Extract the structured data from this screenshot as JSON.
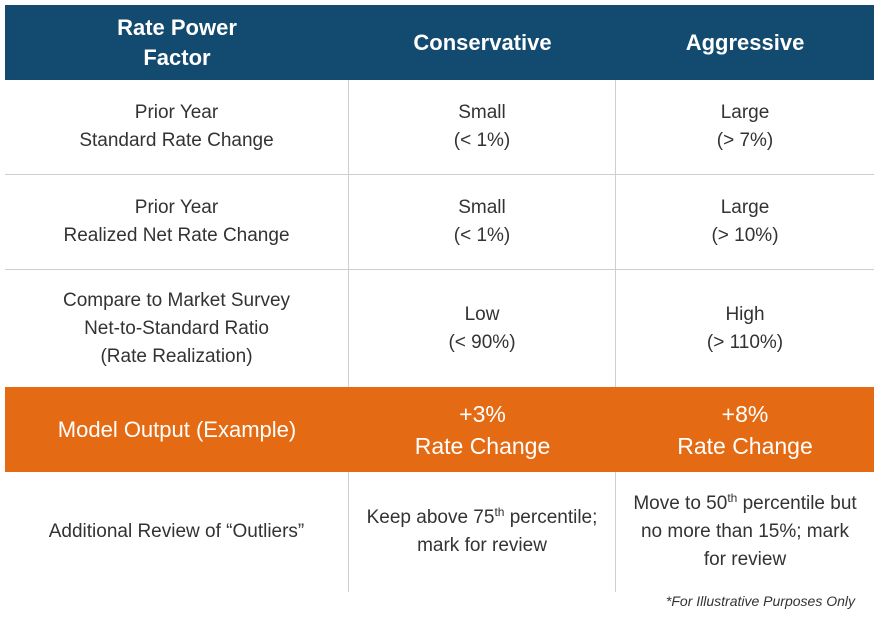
{
  "header": {
    "col1": [
      "Rate Power",
      "Factor"
    ],
    "col2": "Conservative",
    "col3": "Aggressive"
  },
  "rows": [
    {
      "factor": [
        "Prior Year",
        "Standard Rate Change"
      ],
      "conservative": [
        "Small",
        "(< 1%)"
      ],
      "aggressive": [
        "Large",
        "(> 7%)"
      ]
    },
    {
      "factor": [
        "Prior Year",
        "Realized Net Rate Change"
      ],
      "conservative": [
        "Small",
        "(< 1%)"
      ],
      "aggressive": [
        "Large",
        "(> 10%)"
      ]
    },
    {
      "factor": [
        "Compare to Market Survey",
        "Net-to-Standard Ratio",
        "(Rate Realization)"
      ],
      "conservative": [
        "Low",
        "(< 90%)"
      ],
      "aggressive": [
        "High",
        "(> 110%)"
      ]
    }
  ],
  "model_output": {
    "label": "Model Output (Example)",
    "conservative": [
      "+3%",
      "Rate Change"
    ],
    "aggressive": [
      "+8%",
      "Rate Change"
    ]
  },
  "outliers": {
    "label": "Additional Review of “Outliers”",
    "conservative": {
      "line1_pre": "Keep above 75",
      "line1_sup": "th",
      "line1_post": " percentile;",
      "line2": "mark for review"
    },
    "aggressive": {
      "line1_pre": "Move to 50",
      "line1_sup": "th",
      "line1_post": " percentile but",
      "line2": "no more than 15%; mark",
      "line3": "for review"
    }
  },
  "footnote": "*For Illustrative Purposes Only",
  "colors": {
    "header_bg": "#124a70",
    "model_bg": "#e46b14",
    "grid": "#cfcfcf"
  }
}
